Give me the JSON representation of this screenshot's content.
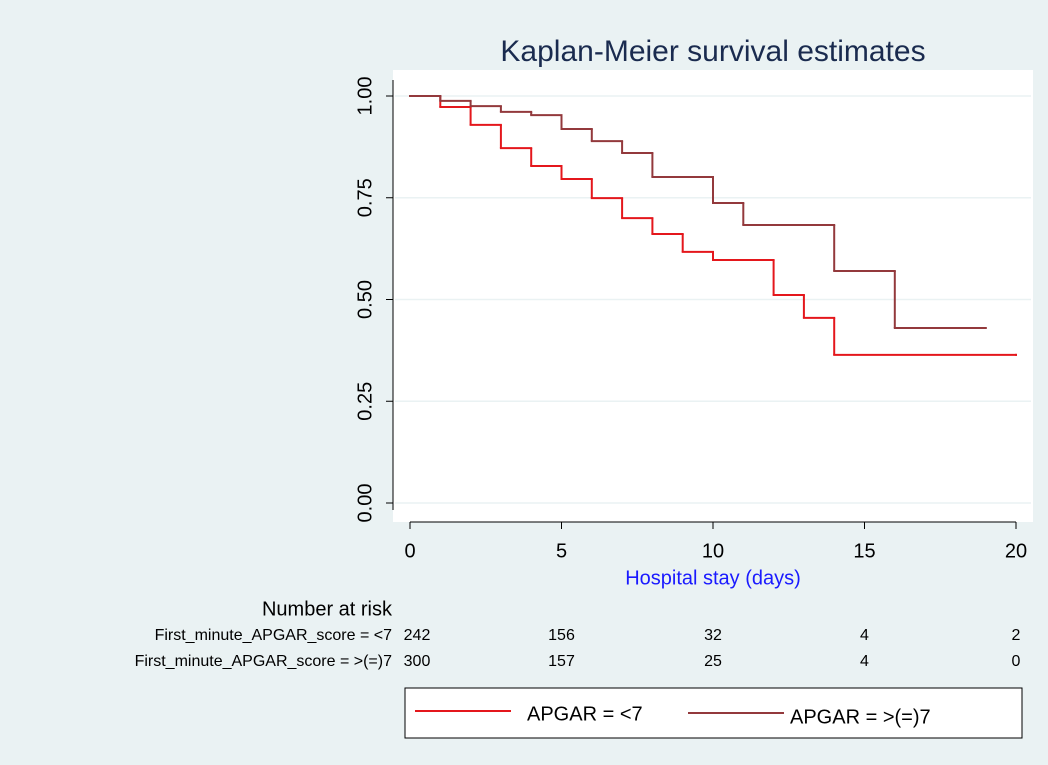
{
  "chart_data": {
    "type": "line",
    "step": "post",
    "title": "Kaplan-Meier survival estimates",
    "xlabel": "Hospital stay (days)",
    "xlim": [
      0,
      20
    ],
    "xticks": [
      0,
      5,
      10,
      15,
      20
    ],
    "ylim": [
      0,
      1
    ],
    "yticks": [
      {
        "value": 0,
        "label": "0.00"
      },
      {
        "value": 0.25,
        "label": "0.25"
      },
      {
        "value": 0.5,
        "label": "0.50"
      },
      {
        "value": 0.75,
        "label": "0.75"
      },
      {
        "value": 1,
        "label": "1.00"
      }
    ],
    "grid": true,
    "legend": "bottom",
    "series": [
      {
        "name": "APGAR = <7",
        "color": "#e4171c",
        "x": [
          0,
          1,
          2,
          3,
          4,
          5,
          6,
          7,
          8,
          9,
          10,
          12,
          13,
          14,
          20
        ],
        "values": [
          1,
          0.973,
          0.929,
          0.872,
          0.828,
          0.796,
          0.749,
          0.7,
          0.661,
          0.617,
          0.597,
          0.511,
          0.455,
          0.364,
          0.364
        ]
      },
      {
        "name": "APGAR = >(=)7",
        "color": "#93393c",
        "x": [
          0,
          1,
          2,
          3,
          4,
          5,
          6,
          7,
          8,
          10,
          11,
          14,
          16,
          19
        ],
        "values": [
          1,
          0.988,
          0.975,
          0.961,
          0.953,
          0.919,
          0.889,
          0.86,
          0.801,
          0.737,
          0.683,
          0.57,
          0.43,
          0.43
        ]
      }
    ],
    "risk_table": {
      "title": "Number at risk",
      "rows": [
        {
          "label": "First_minute_APGAR_score = <7",
          "values": [
            242,
            156,
            32,
            4,
            2
          ]
        },
        {
          "label": "First_minute_APGAR_score = >(=)7",
          "values": [
            300,
            157,
            25,
            4,
            0
          ]
        }
      ]
    }
  }
}
